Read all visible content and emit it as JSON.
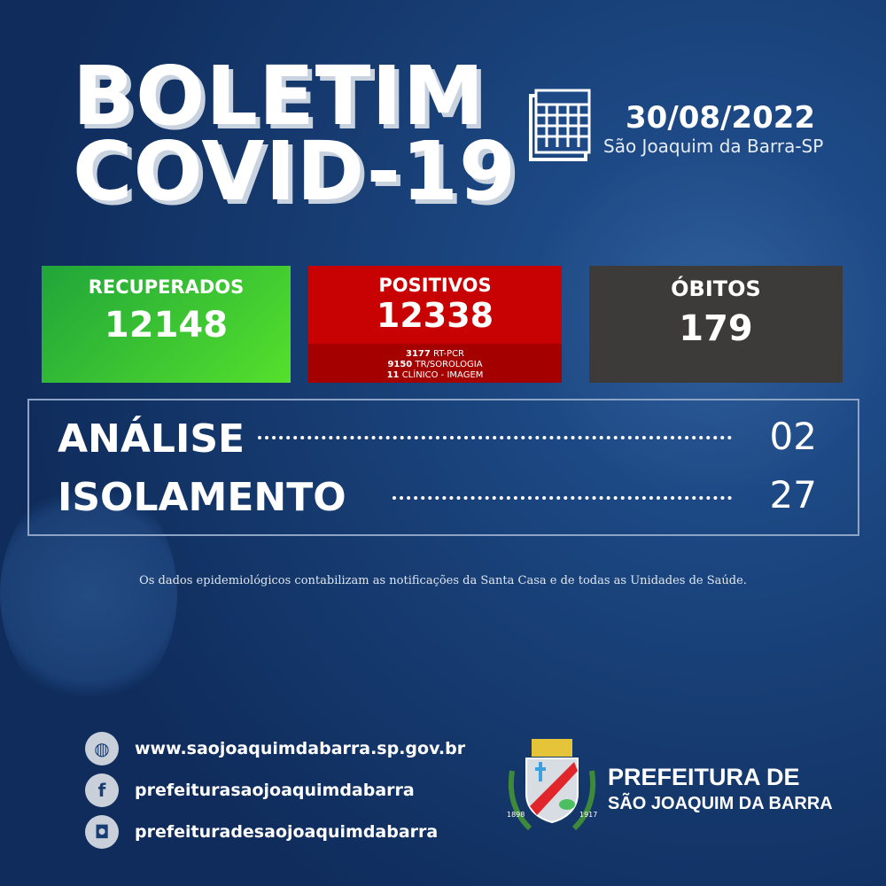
{
  "header": {
    "title_line1": "BOLETIM",
    "title_line2": "COVID-19",
    "date": "30/08/2022",
    "city": "São Joaquim da Barra-SP",
    "calendar_icon": "calendar-icon"
  },
  "cards": {
    "recuperados": {
      "label": "RECUPERADOS",
      "value": "12148",
      "color": "#3cc13a"
    },
    "positivos": {
      "label": "POSITIVOS",
      "value": "12338",
      "color": "#c00000",
      "breakdown": [
        {
          "count": "3177",
          "type": "RT-PCR"
        },
        {
          "count": "9150",
          "type": "TR/SOROLOGIA"
        },
        {
          "count": "11",
          "type": "CLÍNICO - IMAGEM"
        }
      ]
    },
    "obitos": {
      "label": "ÓBITOS",
      "value": "179",
      "color": "#3d3a3a"
    }
  },
  "status": [
    {
      "label": "ANÁLISE",
      "value": "02"
    },
    {
      "label": "ISOLAMENTO",
      "value": "27"
    }
  ],
  "note": "Os dados epidemiológicos contabilizam as notificações da Santa Casa e de todas as Unidades de Saúde.",
  "contacts": [
    {
      "icon": "globe-icon",
      "text": "www.saojoaquimdabarra.sp.gov.br"
    },
    {
      "icon": "facebook-icon",
      "text": "prefeiturasaojoaquimdabarra"
    },
    {
      "icon": "instagram-icon",
      "text": "prefeituradesaojoaquimdabarra"
    }
  ],
  "logo": {
    "line1": "PREFEITURA DE",
    "line2": "SÃO JOAQUIM DA BARRA",
    "years": [
      "1898",
      "1917"
    ]
  }
}
